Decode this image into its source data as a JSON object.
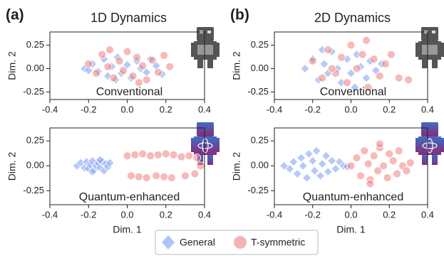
{
  "chart_data": [
    {
      "type": "scatter",
      "panel_label": "(a)",
      "title": "1D Dynamics",
      "annotation": "Conventional",
      "ylabel": "Dim. 2",
      "xlim": [
        -0.4,
        0.4
      ],
      "ylim": [
        -0.33,
        0.39
      ],
      "xticks": [
        -0.4,
        -0.2,
        {
          "value": 0,
          "label": "0.0"
        },
        0.2,
        0.4
      ],
      "yticks": [
        -0.25,
        {
          "value": 0,
          "label": "0.00"
        },
        0.25
      ],
      "series": [
        {
          "name": "General",
          "color": "#7b9ef0",
          "marker": "diamond",
          "x": [
            -0.22,
            -0.18,
            -0.15,
            -0.12,
            -0.1,
            -0.08,
            -0.05,
            -0.03,
            0.0,
            0.02,
            0.05,
            0.07,
            0.1,
            0.12,
            0.15,
            0.18,
            -0.2,
            -0.06
          ],
          "y": [
            0.0,
            0.05,
            -0.03,
            0.1,
            -0.08,
            0.02,
            0.12,
            -0.05,
            0.04,
            -0.1,
            0.08,
            0.0,
            -0.04,
            0.1,
            0.03,
            -0.06,
            -0.02,
            -0.12
          ]
        },
        {
          "name": "T-symmetric",
          "color": "#f08080",
          "marker": "circle",
          "x": [
            -0.2,
            -0.16,
            -0.13,
            -0.1,
            -0.07,
            -0.04,
            -0.02,
            0.0,
            0.03,
            0.05,
            0.08,
            0.1,
            0.13,
            0.16,
            0.19,
            0.22,
            -0.09,
            0.06
          ],
          "y": [
            0.05,
            -0.05,
            0.15,
            0.02,
            -0.1,
            0.08,
            -0.02,
            0.18,
            -0.08,
            0.12,
            0.03,
            -0.12,
            0.09,
            -0.04,
            0.14,
            0.02,
            0.2,
            -0.15
          ]
        }
      ]
    },
    {
      "type": "scatter",
      "annotation": "Quantum-enhanced",
      "ylabel": "Dim. 2",
      "xlabel": "Dim. 1",
      "xlim": [
        -0.4,
        0.4
      ],
      "ylim": [
        -0.39,
        0.38
      ],
      "xticks": [
        -0.4,
        -0.2,
        {
          "value": 0,
          "label": "0.0"
        },
        0.2,
        0.4
      ],
      "yticks": [
        -0.25,
        {
          "value": 0,
          "label": "0.00"
        },
        0.25
      ],
      "series": [
        {
          "color": "#7b9ef0",
          "marker": "diamond",
          "x": [
            -0.26,
            -0.24,
            -0.22,
            -0.21,
            -0.2,
            -0.19,
            -0.18,
            -0.17,
            -0.16,
            -0.15,
            -0.14,
            -0.13,
            -0.12,
            -0.11,
            -0.1,
            -0.09,
            -0.18,
            -0.14
          ],
          "y": [
            0.0,
            0.03,
            -0.02,
            0.04,
            -0.03,
            0.01,
            0.05,
            -0.04,
            0.0,
            0.03,
            -0.02,
            0.04,
            -0.05,
            0.02,
            -0.01,
            0.03,
            -0.06,
            0.06
          ]
        },
        {
          "color": "#f08080",
          "marker": "circle",
          "x": [
            0.0,
            0.04,
            0.08,
            0.12,
            0.16,
            0.2,
            0.24,
            0.28,
            0.32,
            0.36,
            0.02,
            0.06,
            0.1,
            0.15,
            0.19,
            0.23,
            0.3,
            0.35,
            0.38
          ],
          "y": [
            0.1,
            0.11,
            0.12,
            0.1,
            0.11,
            0.12,
            0.11,
            0.09,
            0.1,
            0.08,
            -0.1,
            -0.11,
            -0.12,
            -0.1,
            -0.11,
            -0.12,
            -0.1,
            -0.08,
            0.0
          ]
        }
      ]
    },
    {
      "type": "scatter",
      "panel_label": "(b)",
      "title": "2D Dynamics",
      "annotation": "Conventional",
      "ylabel": "Dim. 2",
      "xlim": [
        -0.4,
        0.4
      ],
      "ylim": [
        -0.33,
        0.39
      ],
      "xticks": [
        -0.4,
        -0.2,
        {
          "value": 0,
          "label": "0.0"
        },
        0.2,
        0.4
      ],
      "yticks": [
        -0.25,
        {
          "value": 0,
          "label": "0.00"
        },
        0.25
      ],
      "series": [
        {
          "color": "#7b9ef0",
          "marker": "diamond",
          "x": [
            -0.24,
            -0.2,
            -0.17,
            -0.14,
            -0.12,
            -0.1,
            -0.07,
            -0.05,
            -0.02,
            0.0,
            0.03,
            0.05,
            0.08,
            0.1,
            0.13,
            0.16,
            -0.15,
            0.02
          ],
          "y": [
            0.0,
            0.1,
            -0.12,
            0.05,
            -0.05,
            0.18,
            0.0,
            -0.15,
            0.1,
            -0.05,
            0.15,
            0.02,
            -0.1,
            0.08,
            -0.02,
            0.05,
            0.2,
            -0.2
          ]
        },
        {
          "color": "#f08080",
          "marker": "circle",
          "x": [
            -0.2,
            -0.15,
            -0.12,
            -0.08,
            -0.05,
            -0.02,
            0.0,
            0.03,
            0.06,
            0.09,
            0.12,
            0.15,
            0.18,
            0.21,
            0.25,
            0.3,
            0.08,
            -0.1
          ],
          "y": [
            0.08,
            -0.1,
            0.2,
            -0.05,
            0.12,
            -0.15,
            0.25,
            0.0,
            0.15,
            -0.2,
            0.1,
            -0.08,
            0.05,
            0.15,
            -0.1,
            -0.12,
            0.3,
            0.0
          ]
        }
      ]
    },
    {
      "type": "scatter",
      "annotation": "Quantum-enhanced",
      "ylabel": "Dim. 2",
      "xlabel": "Dim. 1",
      "xlim": [
        -0.4,
        0.4
      ],
      "ylim": [
        -0.39,
        0.38
      ],
      "xticks": [
        -0.4,
        -0.2,
        {
          "value": 0,
          "label": "0.0"
        },
        0.2,
        0.4
      ],
      "yticks": [
        -0.25,
        {
          "value": 0,
          "label": "0.00"
        },
        0.25
      ],
      "series": [
        {
          "color": "#7b9ef0",
          "marker": "diamond",
          "x": [
            -0.35,
            -0.32,
            -0.3,
            -0.28,
            -0.26,
            -0.25,
            -0.23,
            -0.22,
            -0.2,
            -0.19,
            -0.18,
            -0.16,
            -0.15,
            -0.13,
            -0.12,
            -0.1,
            -0.08,
            -0.06,
            -0.04,
            -0.02
          ],
          "y": [
            0.0,
            -0.03,
            0.04,
            -0.08,
            0.08,
            0.0,
            -0.12,
            0.12,
            0.05,
            -0.05,
            0.15,
            -0.1,
            0.02,
            0.1,
            -0.06,
            0.05,
            -0.03,
            0.04,
            0.0,
            -0.01
          ]
        },
        {
          "color": "#f08080",
          "marker": "circle",
          "x": [
            0.0,
            0.03,
            0.05,
            0.07,
            0.09,
            0.1,
            0.12,
            0.14,
            0.15,
            0.17,
            0.19,
            0.2,
            0.22,
            0.24,
            0.25,
            0.27,
            0.29,
            0.31,
            0.15,
            0.1
          ],
          "y": [
            0.0,
            0.08,
            -0.1,
            0.15,
            0.02,
            -0.14,
            0.1,
            -0.05,
            0.18,
            0.0,
            -0.12,
            0.12,
            0.05,
            -0.08,
            0.15,
            0.0,
            -0.05,
            0.03,
            0.22,
            -0.18
          ]
        }
      ]
    }
  ]
}
